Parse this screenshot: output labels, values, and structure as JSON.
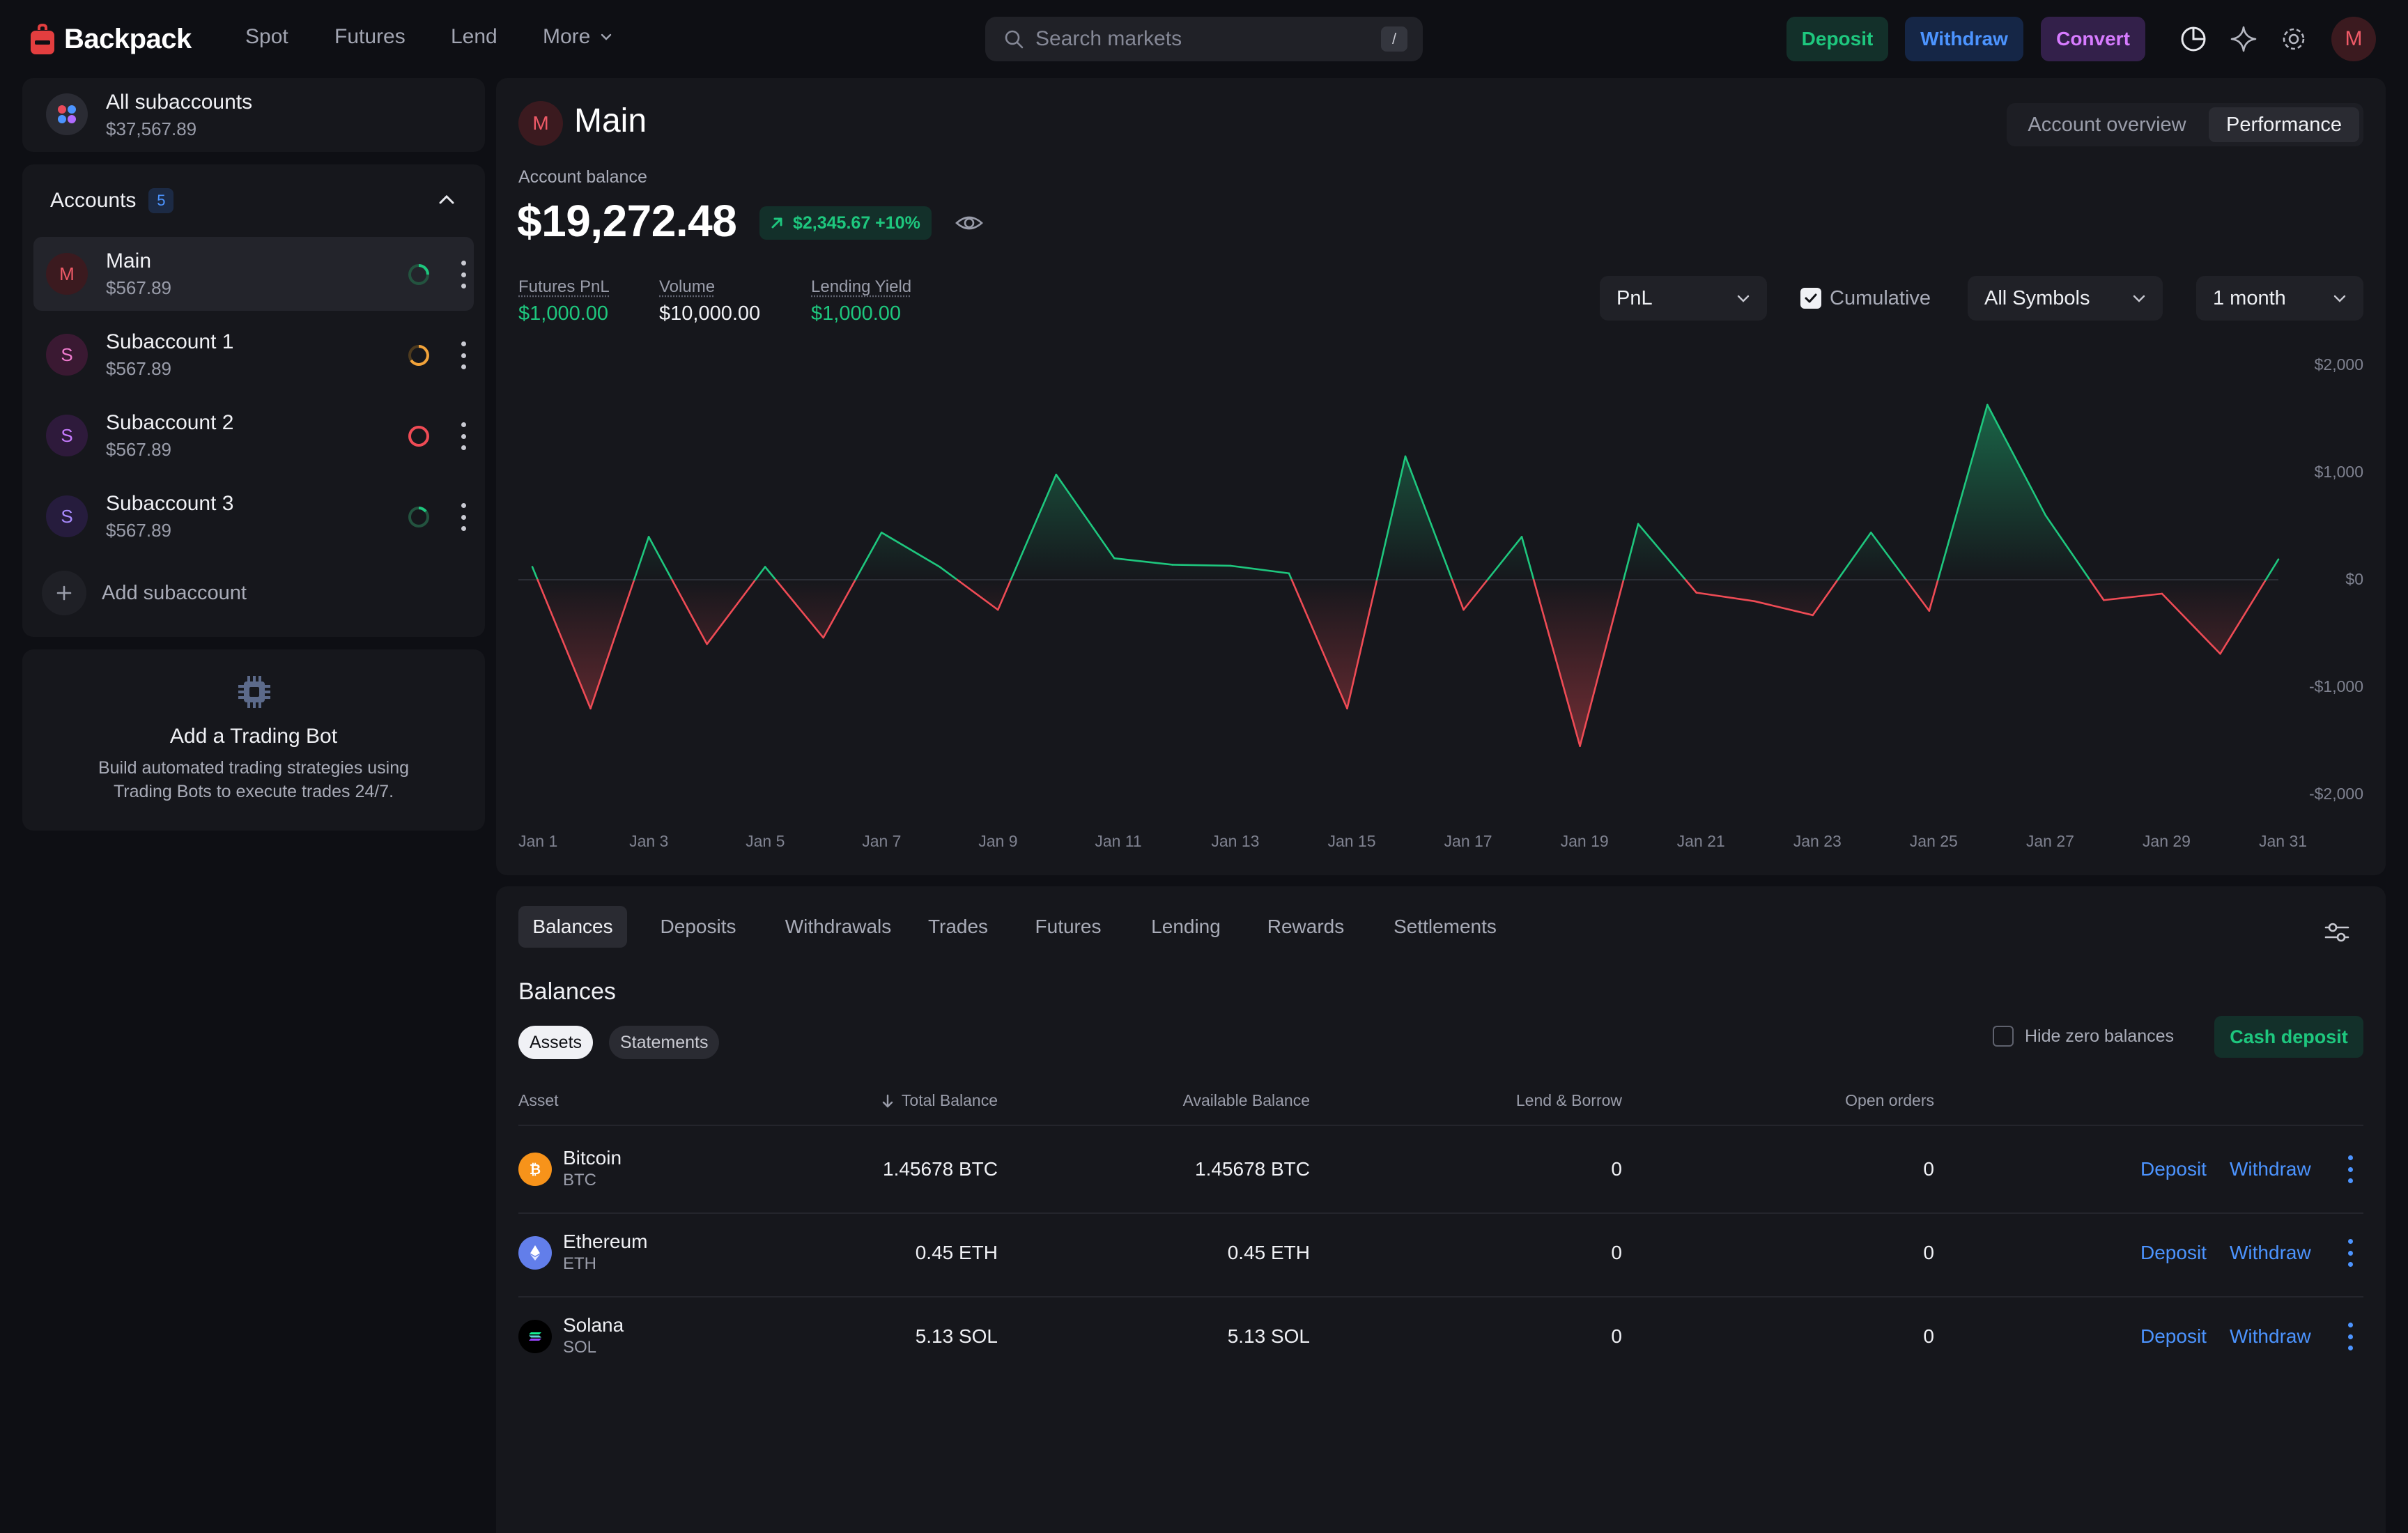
{
  "app": {
    "name": "Backpack"
  },
  "nav": {
    "spot": "Spot",
    "futures": "Futures",
    "lend": "Lend",
    "more": "More"
  },
  "search": {
    "placeholder": "Search markets",
    "shortcut": "/"
  },
  "actions": {
    "deposit": "Deposit",
    "withdraw": "Withdraw",
    "convert": "Convert"
  },
  "user": {
    "initial": "M"
  },
  "colors": {
    "green": "#1ec77e",
    "red": "#ef4b55",
    "blue": "#4c94ff",
    "purple": "#d77bff",
    "bg": "#0e0f14",
    "panel": "#16171c"
  },
  "sidebar": {
    "all": {
      "title": "All subaccounts",
      "value": "$37,567.89"
    },
    "accounts_label": "Accounts",
    "accounts_count": "5",
    "accounts": [
      {
        "initial": "M",
        "name": "Main",
        "value": "$567.89"
      },
      {
        "initial": "S",
        "name": "Subaccount 1",
        "value": "$567.89"
      },
      {
        "initial": "S",
        "name": "Subaccount 2",
        "value": "$567.89"
      },
      {
        "initial": "S",
        "name": "Subaccount 3",
        "value": "$567.89"
      }
    ],
    "add_label": "Add subaccount",
    "bot": {
      "title": "Add a Trading Bot",
      "line1": "Build automated trading strategies using",
      "line2": "Trading Bots to execute trades 24/7."
    }
  },
  "main": {
    "initial": "M",
    "title": "Main",
    "views": {
      "overview": "Account overview",
      "performance": "Performance"
    },
    "balance_label": "Account balance",
    "balance": "$19,272.48",
    "change": "$2,345.67 +10%",
    "stats": [
      {
        "label": "Futures PnL",
        "value": "$1,000.00"
      },
      {
        "label": "Volume",
        "value": "$10,000.00"
      },
      {
        "label": "Lending Yield",
        "value": "$1,000.00"
      }
    ],
    "filters": {
      "metric": "PnL",
      "cumulative": "Cumulative",
      "symbols": "All Symbols",
      "period": "1 month"
    }
  },
  "chart_data": {
    "type": "area",
    "x": [
      "Jan 1",
      "Jan 2",
      "Jan 3",
      "Jan 4",
      "Jan 5",
      "Jan 6",
      "Jan 7",
      "Jan 8",
      "Jan 9",
      "Jan 10",
      "Jan 11",
      "Jan 12",
      "Jan 13",
      "Jan 14",
      "Jan 15",
      "Jan 16",
      "Jan 17",
      "Jan 18",
      "Jan 19",
      "Jan 20",
      "Jan 21",
      "Jan 22",
      "Jan 23",
      "Jan 24",
      "Jan 25",
      "Jan 26",
      "Jan 27",
      "Jan 28",
      "Jan 29",
      "Jan 30",
      "Jan 31"
    ],
    "values": [
      120,
      -1200,
      400,
      -600,
      120,
      -540,
      440,
      120,
      -280,
      980,
      200,
      140,
      130,
      60,
      -1200,
      1150,
      -280,
      400,
      -1550,
      520,
      -120,
      -200,
      -330,
      440,
      -290,
      1630,
      600,
      -190,
      -130,
      -690,
      190
    ],
    "x_ticks": [
      "Jan 1",
      "Jan 3",
      "Jan 5",
      "Jan 7",
      "Jan 9",
      "Jan 11",
      "Jan 13",
      "Jan 15",
      "Jan 17",
      "Jan 19",
      "Jan 21",
      "Jan 23",
      "Jan 25",
      "Jan 27",
      "Jan 29",
      "Jan 31"
    ],
    "y_ticks": [
      "$2,000",
      "$1,000",
      "$0",
      "-$1,000",
      "-$2,000"
    ],
    "ylim": [
      -2000,
      2000
    ]
  },
  "bottom": {
    "tabs": [
      "Balances",
      "Deposits",
      "Withdrawals",
      "Trades",
      "Futures",
      "Lending",
      "Rewards",
      "Settlements"
    ],
    "section_title": "Balances",
    "subtabs": {
      "assets": "Assets",
      "statements": "Statements"
    },
    "hide_zero": "Hide zero balances",
    "cash_deposit": "Cash deposit",
    "headers": {
      "asset": "Asset",
      "total": "Total Balance",
      "available": "Available Balance",
      "lend": "Lend & Borrow",
      "open": "Open orders"
    },
    "rows": [
      {
        "name": "Bitcoin",
        "symbol": "BTC",
        "total": "1.45678 BTC",
        "available": "1.45678 BTC",
        "lend": "0",
        "open": "0",
        "deposit": "Deposit",
        "withdraw": "Withdraw",
        "icon": "bitcoin-icon"
      },
      {
        "name": "Ethereum",
        "symbol": "ETH",
        "total": "0.45 ETH",
        "available": "0.45 ETH",
        "lend": "0",
        "open": "0",
        "deposit": "Deposit",
        "withdraw": "Withdraw",
        "icon": "ethereum-icon"
      },
      {
        "name": "Solana",
        "symbol": "SOL",
        "total": "5.13 SOL",
        "available": "5.13 SOL",
        "lend": "0",
        "open": "0",
        "deposit": "Deposit",
        "withdraw": "Withdraw",
        "icon": "solana-icon"
      }
    ]
  }
}
